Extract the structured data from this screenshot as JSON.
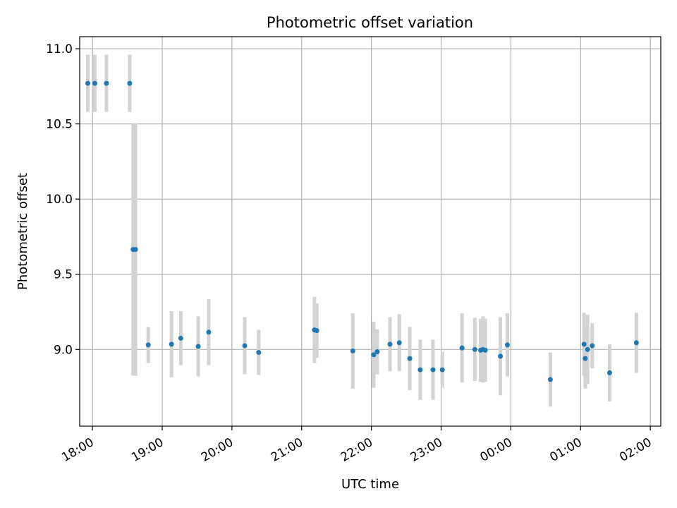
{
  "chart_data": {
    "type": "scatter",
    "title": "Photometric offset variation",
    "xlabel": "UTC time",
    "ylabel": "Photometric offset",
    "x_ticks": [
      "18:00",
      "19:00",
      "20:00",
      "21:00",
      "22:00",
      "23:00",
      "00:00",
      "01:00",
      "02:00"
    ],
    "y_ticks": [
      "9.0",
      "9.5",
      "10.0",
      "10.5",
      "11.0"
    ],
    "xlim": [
      "17:49",
      "02:09"
    ],
    "ylim": [
      8.49,
      11.08
    ],
    "grid": true,
    "colors": {
      "point": "#1f77b4",
      "errorbar": "#d3d3d3",
      "grid": "#b0b0b0"
    },
    "points": [
      {
        "t": "17:56",
        "y": 10.77,
        "err": 0.19
      },
      {
        "t": "18:02",
        "y": 10.77,
        "err": 0.19
      },
      {
        "t": "18:12",
        "y": 10.77,
        "err": 0.19
      },
      {
        "t": "18:32",
        "y": 10.77,
        "err": 0.19
      },
      {
        "t": "18:35",
        "y": 9.665,
        "err": 0.84
      },
      {
        "t": "18:37",
        "y": 9.665,
        "err": 0.84
      },
      {
        "t": "18:48",
        "y": 9.03,
        "err": 0.12
      },
      {
        "t": "19:08",
        "y": 9.035,
        "err": 0.22
      },
      {
        "t": "19:16",
        "y": 9.075,
        "err": 0.18
      },
      {
        "t": "19:31",
        "y": 9.02,
        "err": 0.2
      },
      {
        "t": "19:40",
        "y": 9.115,
        "err": 0.22
      },
      {
        "t": "20:11",
        "y": 9.025,
        "err": 0.19
      },
      {
        "t": "20:23",
        "y": 8.98,
        "err": 0.15
      },
      {
        "t": "21:11",
        "y": 9.13,
        "err": 0.22
      },
      {
        "t": "21:13",
        "y": 9.125,
        "err": 0.18
      },
      {
        "t": "21:44",
        "y": 8.99,
        "err": 0.25
      },
      {
        "t": "22:02",
        "y": 8.965,
        "err": 0.22
      },
      {
        "t": "22:05",
        "y": 8.985,
        "err": 0.15
      },
      {
        "t": "22:16",
        "y": 9.035,
        "err": 0.18
      },
      {
        "t": "22:24",
        "y": 9.045,
        "err": 0.19
      },
      {
        "t": "22:33",
        "y": 8.94,
        "err": 0.21
      },
      {
        "t": "22:42",
        "y": 8.865,
        "err": 0.2
      },
      {
        "t": "22:53",
        "y": 8.865,
        "err": 0.2
      },
      {
        "t": "23:01",
        "y": 8.865,
        "err": 0.12
      },
      {
        "t": "23:18",
        "y": 9.01,
        "err": 0.23
      },
      {
        "t": "23:29",
        "y": 9.0,
        "err": 0.21
      },
      {
        "t": "23:34",
        "y": 8.995,
        "err": 0.21
      },
      {
        "t": "23:36",
        "y": 9.0,
        "err": 0.22
      },
      {
        "t": "23:38",
        "y": 8.995,
        "err": 0.21
      },
      {
        "t": "23:51",
        "y": 8.955,
        "err": 0.26
      },
      {
        "t": "23:57",
        "y": 9.03,
        "err": 0.21
      },
      {
        "t": "00:34",
        "y": 8.8,
        "err": 0.18
      },
      {
        "t": "01:03",
        "y": 9.035,
        "err": 0.21
      },
      {
        "t": "01:04",
        "y": 8.94,
        "err": 0.2
      },
      {
        "t": "01:06",
        "y": 9.0,
        "err": 0.23
      },
      {
        "t": "01:10",
        "y": 9.025,
        "err": 0.15
      },
      {
        "t": "01:25",
        "y": 8.845,
        "err": 0.19
      },
      {
        "t": "01:48",
        "y": 9.045,
        "err": 0.2
      }
    ]
  }
}
